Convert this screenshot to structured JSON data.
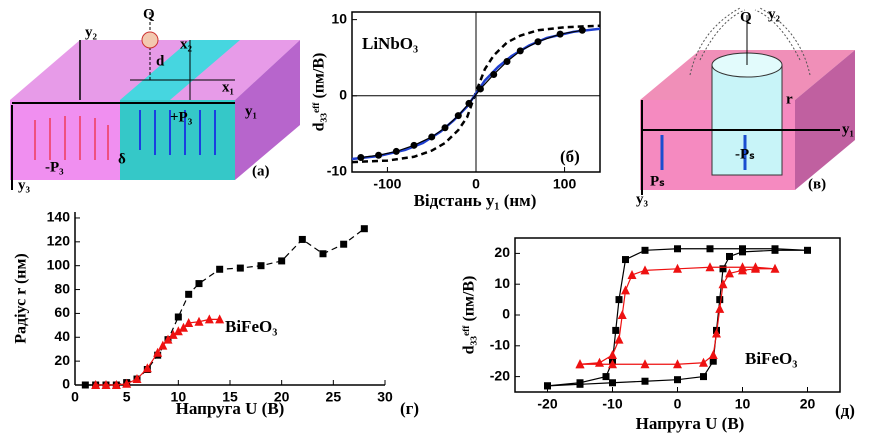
{
  "chart_data": [
    {
      "type": "line",
      "ylabel": "d₃₃ᵉᶠᶠ (пм/В)",
      "xlabel": "Відстань y₁ (нм)",
      "annotations": [
        "LiNbO₃",
        "(б)"
      ],
      "xlim": [
        -140,
        140
      ],
      "xticks": [
        -100,
        0,
        100
      ],
      "ylim": [
        -10,
        11
      ],
      "yticks": [
        -10,
        0,
        10
      ],
      "series": [
        {
          "name": null,
          "color": "#000000",
          "marker": "none",
          "dash": true,
          "x": [
            -140,
            -100,
            -70,
            -50,
            -35,
            -20,
            -10,
            0,
            10,
            20,
            35,
            50,
            70,
            100,
            140
          ],
          "values": [
            -8.7,
            -8.5,
            -8,
            -7.2,
            -6.2,
            -4.5,
            -2.8,
            0.5,
            3.5,
            5.3,
            7,
            7.9,
            8.6,
            9,
            9.2
          ]
        },
        {
          "name": null,
          "color": "#1f3fd0",
          "marker": "none",
          "dash": false,
          "x": [
            -140,
            -110,
            -80,
            -60,
            -40,
            -25,
            -10,
            0,
            10,
            25,
            40,
            60,
            80,
            110,
            140
          ],
          "values": [
            -8.3,
            -7.9,
            -7.1,
            -6.2,
            -4.7,
            -3.2,
            -1.4,
            0.3,
            2,
            3.8,
            5.2,
            6.6,
            7.6,
            8.4,
            8.8
          ]
        },
        {
          "name": null,
          "color": "#000000",
          "marker": "circle",
          "dash": false,
          "x": [
            -130,
            -110,
            -90,
            -70,
            -50,
            -35,
            -20,
            -8,
            5,
            20,
            35,
            50,
            70,
            95,
            120
          ],
          "values": [
            -8.1,
            -7.8,
            -7.3,
            -6.5,
            -5.4,
            -4.2,
            -2.6,
            -1,
            0.9,
            2.8,
            4.5,
            5.9,
            7.1,
            8.1,
            8.6
          ]
        }
      ]
    },
    {
      "type": "line",
      "ylabel": "Радіус r (нм)",
      "xlabel": "Напруга U (В)",
      "annotations": [
        "BiFeO₃",
        "(г)"
      ],
      "xlim": [
        0,
        30
      ],
      "xticks": [
        0,
        5,
        10,
        15,
        20,
        25,
        30
      ],
      "ylim": [
        0,
        145
      ],
      "yticks": [
        0,
        20,
        40,
        60,
        80,
        100,
        120,
        140
      ],
      "series": [
        {
          "name": null,
          "color": "#000000",
          "marker": "square",
          "dash": true,
          "x": [
            1,
            2,
            3,
            4,
            5,
            6,
            7,
            8,
            9,
            10,
            11,
            12,
            14,
            16,
            18,
            20,
            22,
            24,
            26,
            28
          ],
          "values": [
            0,
            0,
            0,
            0,
            2,
            5,
            13,
            25,
            38,
            57,
            76,
            85,
            97,
            98,
            100,
            104,
            122,
            110,
            118,
            131
          ]
        },
        {
          "name": null,
          "color": "#ee1111",
          "marker": "triangle",
          "dash": false,
          "x": [
            2,
            3,
            4,
            5,
            6,
            7,
            8,
            8.5,
            9,
            9.5,
            10,
            10.5,
            11,
            12,
            13,
            14
          ],
          "values": [
            0,
            0,
            0,
            1,
            5,
            14,
            27,
            33,
            38,
            42,
            45,
            48,
            52,
            53,
            55,
            55
          ]
        }
      ]
    },
    {
      "type": "line",
      "ylabel": "d₃₃ᵉᶠᶠ (пм/В)",
      "xlabel": "Напруга U (В)",
      "annotations": [
        "BiFeO₃",
        "(д)"
      ],
      "xlim": [
        -25,
        25
      ],
      "xticks": [
        -20,
        -10,
        0,
        10,
        20
      ],
      "ylim": [
        -25,
        25
      ],
      "yticks": [
        -20,
        -10,
        0,
        10,
        20
      ],
      "series": [
        {
          "name": null,
          "color": "#000000",
          "marker": "square",
          "dash": false,
          "x": [
            -20,
            -15,
            -10,
            -5,
            0,
            4,
            5.5,
            6,
            6.5,
            7,
            8,
            10,
            15,
            20,
            15,
            10,
            5,
            0,
            -5,
            -8,
            -9,
            -9.5,
            -10,
            -11,
            -15,
            -20
          ],
          "values": [
            -23,
            -22.5,
            -22,
            -21.5,
            -21,
            -20,
            -15,
            -5,
            5,
            15,
            19,
            20.5,
            21,
            21,
            21.5,
            21.5,
            21.5,
            21.5,
            21,
            18,
            5,
            -5,
            -15,
            -20,
            -22,
            -23
          ]
        },
        {
          "name": null,
          "color": "#ee1111",
          "marker": "triangle",
          "dash": false,
          "x": [
            -15,
            -10,
            -5,
            0,
            4,
            5.5,
            6,
            6.5,
            7,
            8,
            10,
            12,
            15,
            12,
            10,
            5,
            0,
            -5,
            -7,
            -8,
            -8.5,
            -9,
            -10,
            -12,
            -15
          ],
          "values": [
            -16,
            -16,
            -16,
            -16,
            -15.5,
            -13,
            -6,
            2,
            10,
            13.5,
            14.5,
            15,
            15,
            15.5,
            15.5,
            15.5,
            15,
            14.5,
            13,
            8,
            0,
            -8,
            -13,
            -15.5,
            -16
          ]
        }
      ]
    }
  ],
  "diagrams": {
    "a": {
      "labels": [
        "y₂",
        "Q",
        "x₂",
        "d",
        "x₁",
        "y₁",
        "+P₃",
        "-P₃",
        "δ",
        "y₃",
        "(a)"
      ]
    },
    "v": {
      "labels": [
        "y₂",
        "Q",
        "r",
        "y₁",
        "Pₛ",
        "-Pₛ",
        "y₃",
        "(в)"
      ]
    }
  }
}
